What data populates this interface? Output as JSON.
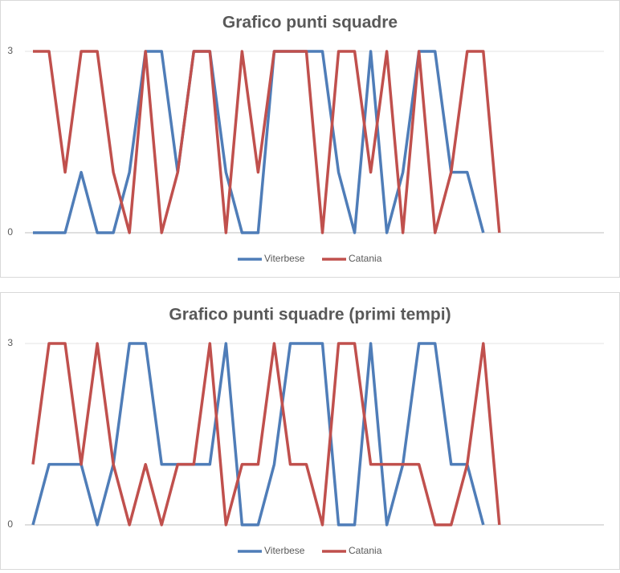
{
  "chart_data": [
    {
      "type": "line",
      "title": "Grafico punti squadre",
      "ylim": [
        0,
        3
      ],
      "yticks": [
        0,
        3
      ],
      "grid": true,
      "legend": "bottom",
      "series": [
        {
          "name": "Viterbese",
          "color": "#4f7db8",
          "values": [
            0,
            0,
            0,
            1,
            0,
            0,
            1,
            3,
            3,
            1,
            3,
            3,
            1,
            0,
            0,
            3,
            3,
            3,
            3,
            1,
            0,
            3,
            0,
            1,
            3,
            3,
            1,
            1,
            0,
            null,
            null,
            null,
            null,
            null,
            null,
            null
          ]
        },
        {
          "name": "Catania",
          "color": "#c0504d",
          "values": [
            3,
            3,
            1,
            3,
            3,
            1,
            0,
            3,
            0,
            1,
            3,
            3,
            0,
            3,
            1,
            3,
            3,
            3,
            0,
            3,
            3,
            1,
            3,
            0,
            3,
            0,
            1,
            3,
            3,
            0,
            null,
            null,
            null,
            null,
            null,
            null
          ]
        }
      ]
    },
    {
      "type": "line",
      "title": "Grafico punti squadre (primi tempi)",
      "ylim": [
        0,
        3
      ],
      "yticks": [
        0,
        3
      ],
      "grid": true,
      "legend": "bottom",
      "series": [
        {
          "name": "Viterbese",
          "color": "#4f7db8",
          "values": [
            0,
            1,
            1,
            1,
            0,
            1,
            3,
            3,
            1,
            1,
            1,
            1,
            3,
            0,
            0,
            1,
            3,
            3,
            3,
            0,
            0,
            3,
            0,
            1,
            3,
            3,
            1,
            1,
            0,
            null,
            null,
            null,
            null,
            null,
            null,
            null
          ]
        },
        {
          "name": "Catania",
          "color": "#c0504d",
          "values": [
            1,
            3,
            3,
            1,
            3,
            1,
            0,
            1,
            0,
            1,
            1,
            3,
            0,
            1,
            1,
            3,
            1,
            1,
            0,
            3,
            3,
            1,
            1,
            1,
            1,
            0,
            0,
            1,
            3,
            0,
            null,
            null,
            null,
            null,
            null,
            null
          ]
        }
      ]
    }
  ]
}
